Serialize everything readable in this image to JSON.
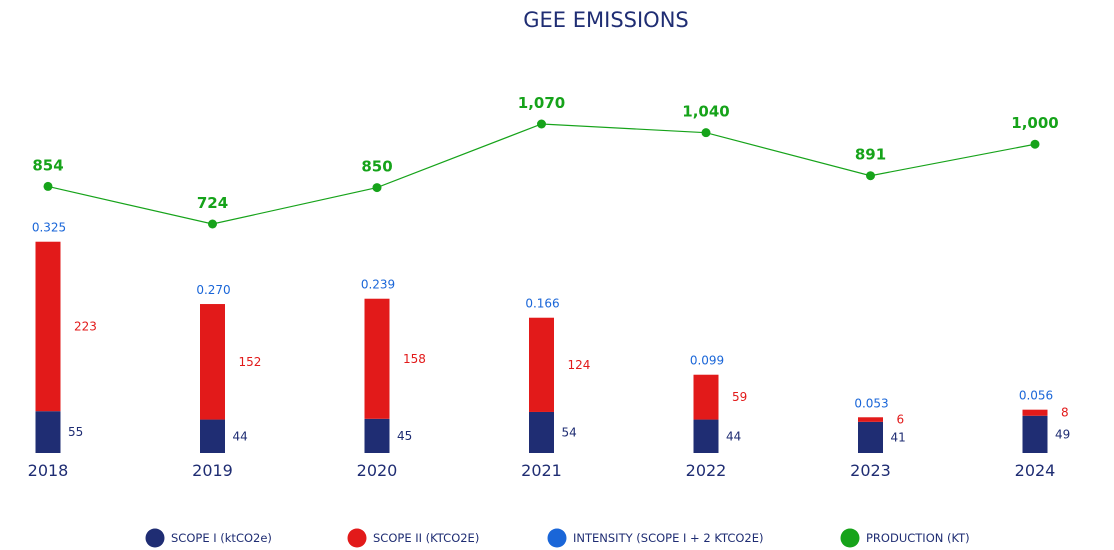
{
  "chart_data": {
    "type": "bar",
    "title": "GEE EMISSIONS",
    "categories": [
      "2018",
      "2019",
      "2020",
      "2021",
      "2022",
      "2023",
      "2024"
    ],
    "series": [
      {
        "name": "SCOPE I (ktCO2e)",
        "kind": "stacked-bar",
        "color": "#1f2d73",
        "values": [
          55,
          44,
          45,
          54,
          44,
          41,
          49
        ]
      },
      {
        "name": "SCOPE II (KTCO2E)",
        "kind": "stacked-bar",
        "color": "#e21a1a",
        "values": [
          223,
          152,
          158,
          124,
          59,
          6,
          8
        ]
      },
      {
        "name": "INTENSITY (SCOPE I + 2 KTCO2E)",
        "kind": "label",
        "color": "#1a66d8",
        "values": [
          "0.325",
          "0.270",
          "0.239",
          "0.166",
          "0.099",
          "0.053",
          "0.056"
        ]
      },
      {
        "name": "PRODUCTION (KT)",
        "kind": "line",
        "color": "#16a31a",
        "values": [
          854,
          724,
          850,
          1070,
          1040,
          891,
          1000
        ],
        "labels": [
          "854",
          "724",
          "850",
          "1,070",
          "1,040",
          "891",
          "1,000"
        ]
      }
    ],
    "legend_position": "bottom",
    "grid": false
  }
}
